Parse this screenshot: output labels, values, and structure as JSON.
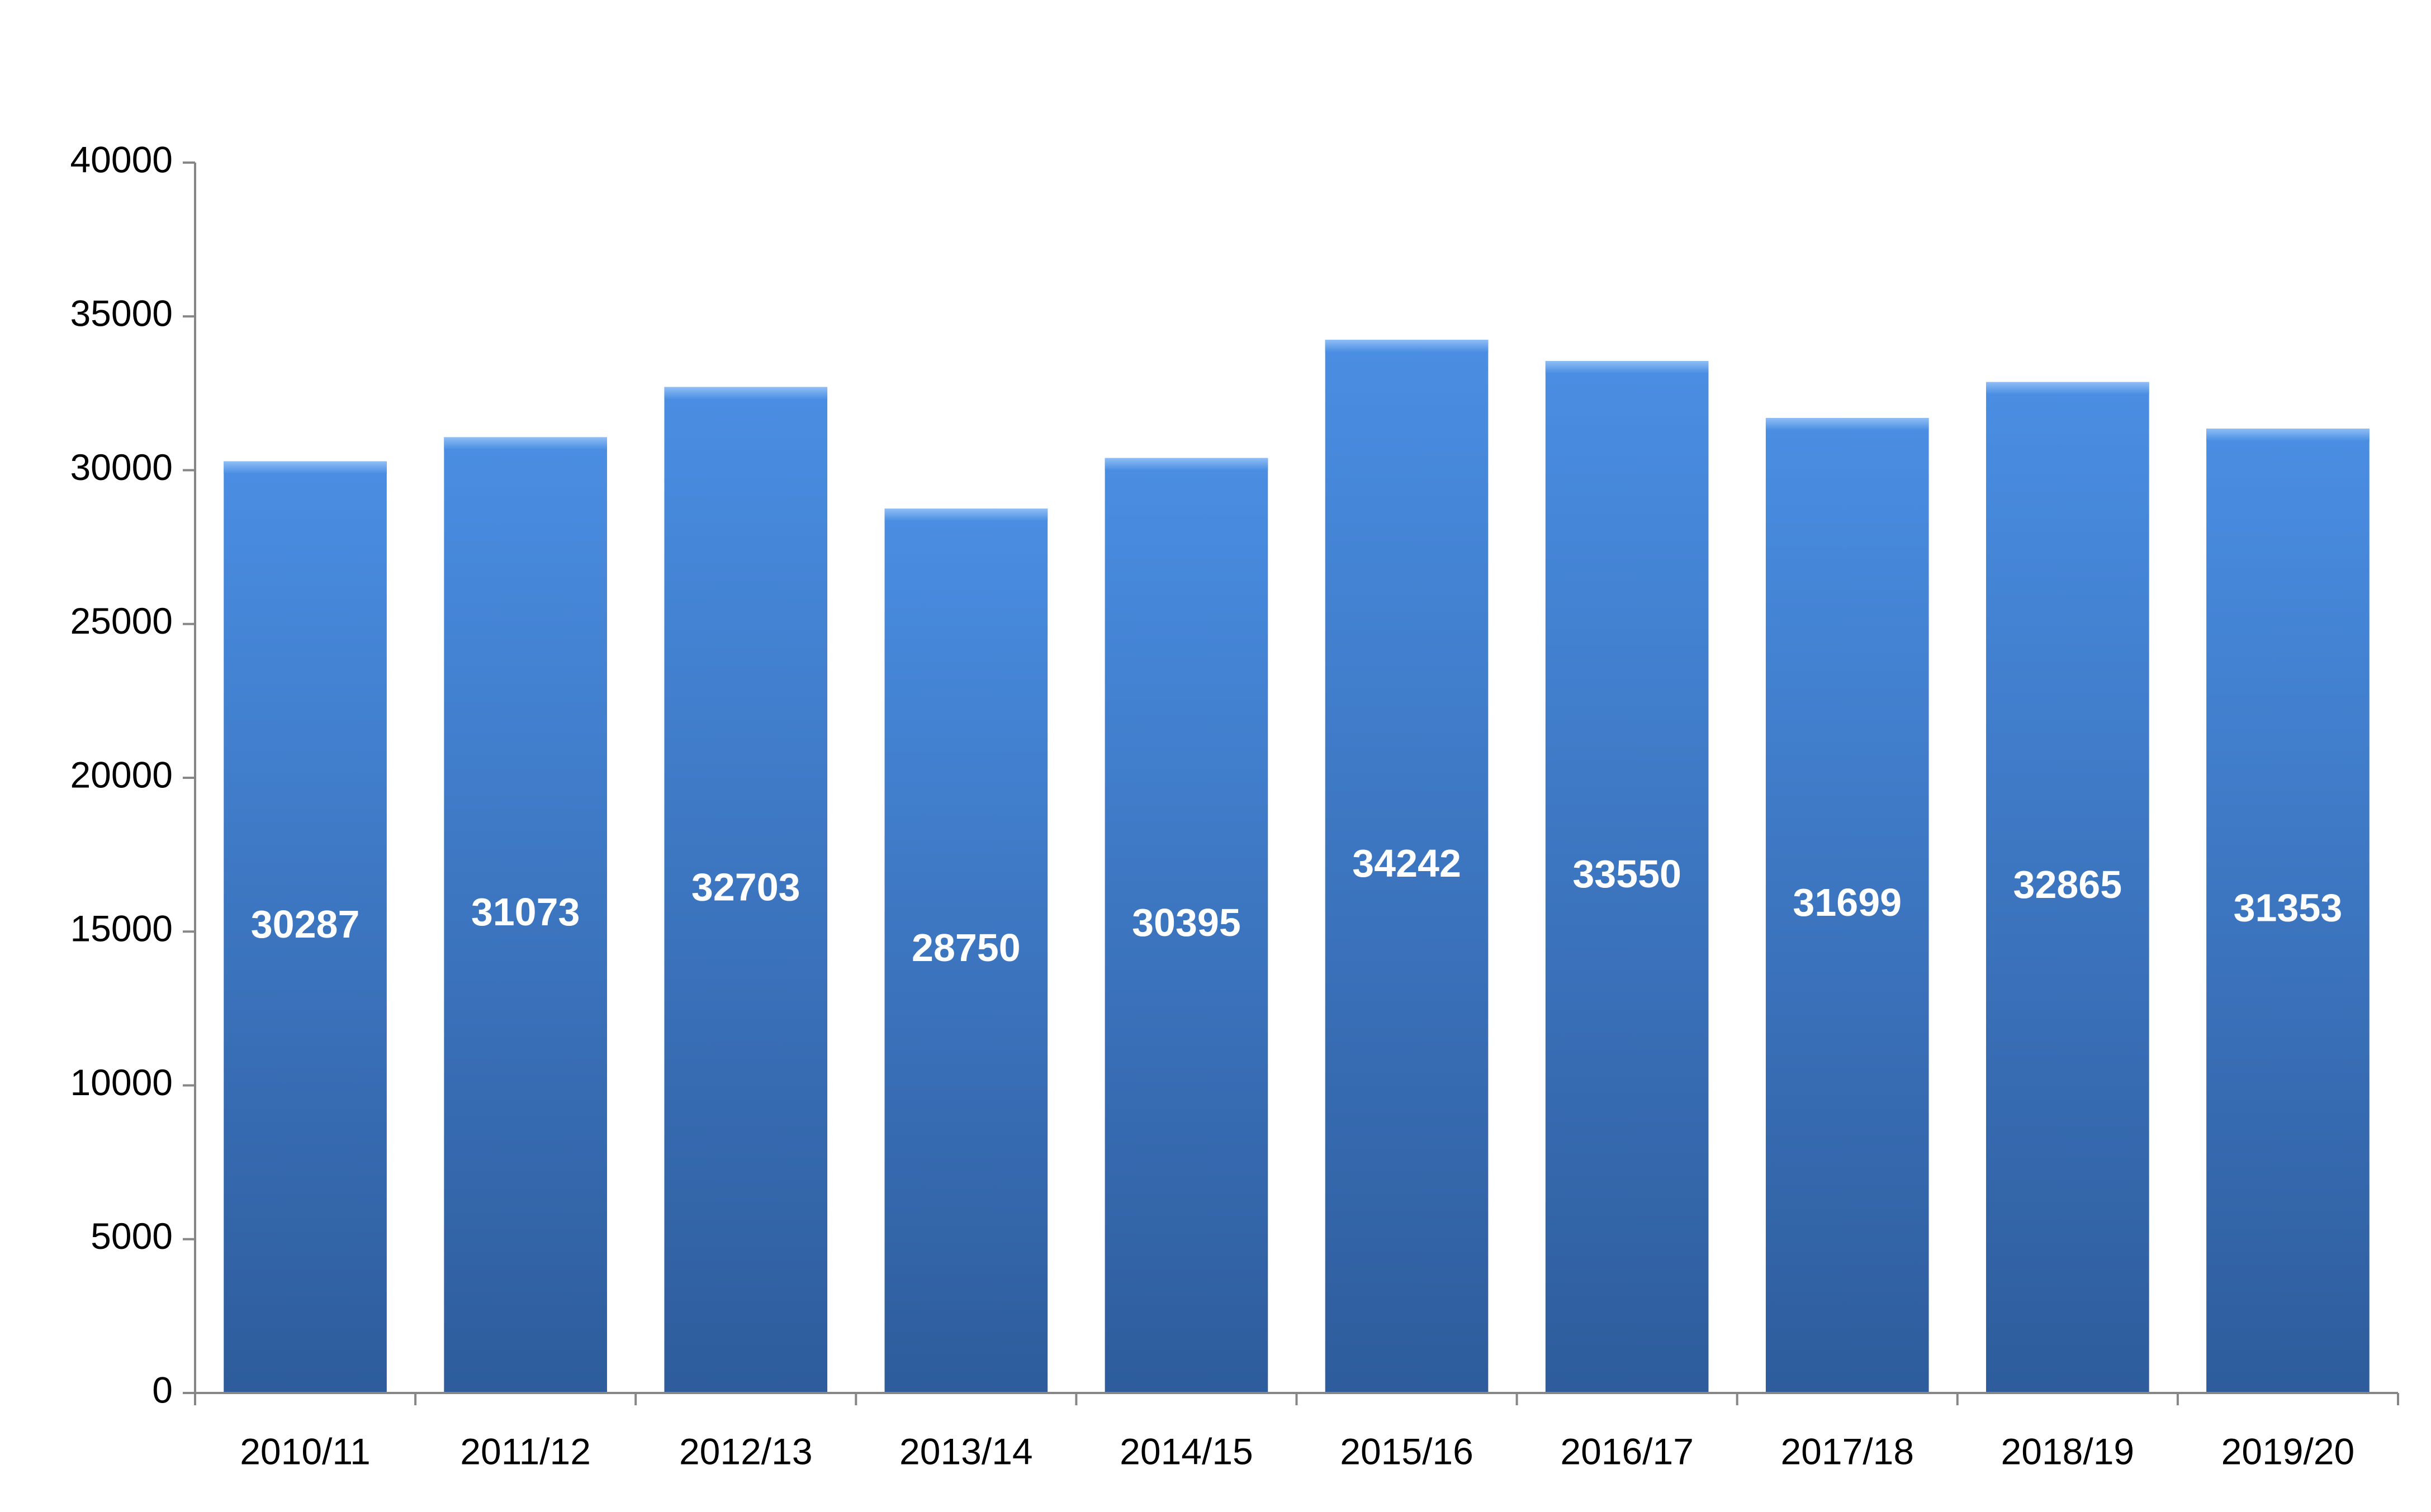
{
  "chart_data": {
    "type": "bar",
    "categories": [
      "2010/11",
      "2011/12",
      "2012/13",
      "2013/14",
      "2014/15",
      "2015/16",
      "2016/17",
      "2017/18",
      "2018/19",
      "2019/20"
    ],
    "values": [
      30287,
      31073,
      32703,
      28750,
      30395,
      34242,
      33550,
      31699,
      32865,
      31353
    ],
    "color": "#3a78c8",
    "ylim": [
      0,
      40000
    ],
    "yticks": [
      0,
      5000,
      10000,
      15000,
      20000,
      25000,
      30000,
      35000,
      40000
    ],
    "grid": false
  }
}
